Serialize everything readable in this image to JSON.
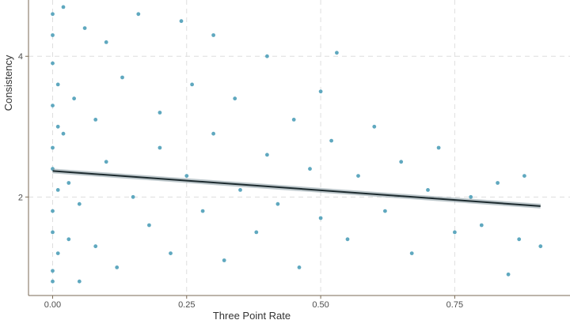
{
  "chart_data": {
    "type": "scatter",
    "xlabel": "Three Point Rate",
    "ylabel": "Consistency",
    "xlim": [
      -0.045,
      0.965
    ],
    "ylim": [
      0.6,
      4.8
    ],
    "x_ticks": [
      0.0,
      0.25,
      0.5,
      0.75
    ],
    "x_tick_labels": [
      "0.00",
      "0.25",
      "0.50",
      "0.75"
    ],
    "y_ticks": [
      2,
      4
    ],
    "y_tick_labels": [
      "2",
      "4"
    ],
    "grid": true,
    "point_color": "#5fa8bf",
    "fit_color": "#1c2a2e",
    "band_color": "#8a9ca3",
    "series": [
      {
        "points": [
          [
            0.0,
            4.6
          ],
          [
            0.0,
            4.3
          ],
          [
            0.0,
            3.9
          ],
          [
            0.01,
            3.6
          ],
          [
            0.0,
            3.3
          ],
          [
            0.01,
            3.0
          ],
          [
            0.0,
            2.7
          ],
          [
            0.0,
            2.4
          ],
          [
            0.01,
            2.1
          ],
          [
            0.0,
            1.8
          ],
          [
            0.0,
            1.5
          ],
          [
            0.01,
            1.2
          ],
          [
            0.0,
            0.95
          ],
          [
            0.0,
            0.8
          ],
          [
            0.02,
            4.7
          ],
          [
            0.02,
            2.9
          ],
          [
            0.03,
            2.2
          ],
          [
            0.03,
            1.4
          ],
          [
            0.04,
            3.4
          ],
          [
            0.05,
            0.8
          ],
          [
            0.05,
            1.9
          ],
          [
            0.06,
            4.4
          ],
          [
            0.08,
            3.1
          ],
          [
            0.08,
            1.3
          ],
          [
            0.1,
            4.2
          ],
          [
            0.1,
            2.5
          ],
          [
            0.12,
            1.0
          ],
          [
            0.13,
            3.7
          ],
          [
            0.15,
            2.0
          ],
          [
            0.16,
            4.6
          ],
          [
            0.18,
            1.6
          ],
          [
            0.2,
            3.2
          ],
          [
            0.2,
            2.7
          ],
          [
            0.22,
            1.2
          ],
          [
            0.24,
            4.5
          ],
          [
            0.25,
            2.3
          ],
          [
            0.26,
            3.6
          ],
          [
            0.28,
            1.8
          ],
          [
            0.3,
            4.3
          ],
          [
            0.3,
            2.9
          ],
          [
            0.32,
            1.1
          ],
          [
            0.34,
            3.4
          ],
          [
            0.35,
            2.1
          ],
          [
            0.38,
            1.5
          ],
          [
            0.4,
            4.0
          ],
          [
            0.4,
            2.6
          ],
          [
            0.42,
            1.9
          ],
          [
            0.45,
            3.1
          ],
          [
            0.46,
            1.0
          ],
          [
            0.48,
            2.4
          ],
          [
            0.5,
            3.5
          ],
          [
            0.5,
            1.7
          ],
          [
            0.52,
            2.8
          ],
          [
            0.53,
            4.05
          ],
          [
            0.55,
            1.4
          ],
          [
            0.57,
            2.3
          ],
          [
            0.6,
            3.0
          ],
          [
            0.62,
            1.8
          ],
          [
            0.65,
            2.5
          ],
          [
            0.67,
            1.2
          ],
          [
            0.7,
            2.1
          ],
          [
            0.72,
            2.7
          ],
          [
            0.75,
            1.5
          ],
          [
            0.78,
            2.0
          ],
          [
            0.8,
            1.6
          ],
          [
            0.83,
            2.2
          ],
          [
            0.85,
            0.9
          ],
          [
            0.87,
            1.4
          ],
          [
            0.88,
            2.3
          ],
          [
            0.91,
            1.3
          ]
        ]
      }
    ],
    "fit_line": {
      "x": [
        0.0,
        0.91
      ],
      "y": [
        2.37,
        1.87
      ]
    }
  }
}
